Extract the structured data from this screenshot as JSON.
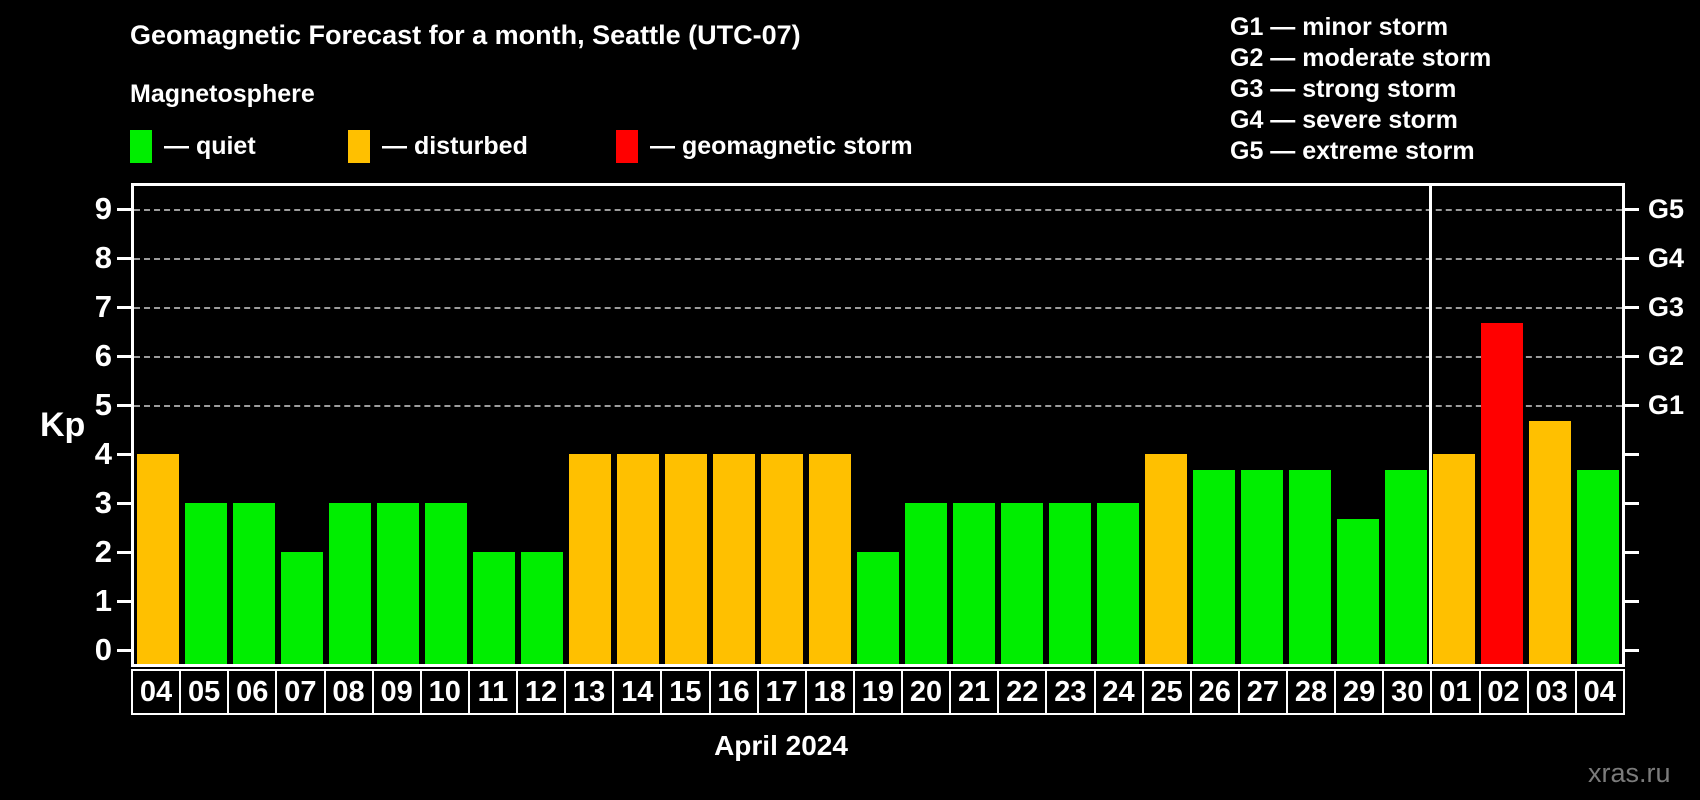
{
  "title": "Geomagnetic Forecast for a month, Seattle (UTC-07)",
  "subtitle": "Magnetosphere",
  "legend": {
    "items": [
      {
        "id": "quiet",
        "label": "— quiet",
        "color": "#00ee00"
      },
      {
        "id": "disturbed",
        "label": "— disturbed",
        "color": "#ffc000"
      },
      {
        "id": "storm",
        "label": "— geomagnetic storm",
        "color": "#ff0000"
      }
    ]
  },
  "g_scale": [
    "G1 — minor storm",
    "G2 — moderate storm",
    "G3 — strong storm",
    "G4 — severe storm",
    "G5 — extreme storm"
  ],
  "y_axis": {
    "label": "Kp",
    "ticks": [
      "0",
      "1",
      "2",
      "3",
      "4",
      "5",
      "6",
      "7",
      "8",
      "9"
    ]
  },
  "right_axis": {
    "labels": [
      "G1",
      "G2",
      "G3",
      "G4",
      "G5"
    ],
    "values": [
      5,
      6,
      7,
      8,
      9
    ]
  },
  "x_axis_title": "April 2024",
  "watermark": "xras.ru",
  "chart_data": {
    "type": "bar",
    "title": "Geomagnetic Forecast for a month, Seattle (UTC-07)",
    "xlabel": "April 2024",
    "ylabel": "Kp",
    "ylim": [
      0,
      9.5
    ],
    "grid": "dashed horizontal lines at Kp 5-9 only",
    "legend_position": "top-left",
    "month_separator_after_index": 26,
    "categories": [
      "04",
      "05",
      "06",
      "07",
      "08",
      "09",
      "10",
      "11",
      "12",
      "13",
      "14",
      "15",
      "16",
      "17",
      "18",
      "19",
      "20",
      "21",
      "22",
      "23",
      "24",
      "25",
      "26",
      "27",
      "28",
      "29",
      "30",
      "01",
      "02",
      "03",
      "04"
    ],
    "values": [
      4,
      3,
      3,
      2,
      3,
      3,
      3,
      2,
      2,
      4,
      4,
      4,
      4,
      4,
      4,
      2,
      3,
      3,
      3,
      3,
      3,
      4,
      3.67,
      3.67,
      3.67,
      2.67,
      3.67,
      4,
      6.67,
      4.67,
      3.67
    ],
    "statuses": [
      "disturbed",
      "quiet",
      "quiet",
      "quiet",
      "quiet",
      "quiet",
      "quiet",
      "quiet",
      "quiet",
      "disturbed",
      "disturbed",
      "disturbed",
      "disturbed",
      "disturbed",
      "disturbed",
      "quiet",
      "quiet",
      "quiet",
      "quiet",
      "quiet",
      "quiet",
      "disturbed",
      "quiet",
      "quiet",
      "quiet",
      "quiet",
      "quiet",
      "disturbed",
      "storm",
      "disturbed",
      "quiet"
    ],
    "status_colors": {
      "quiet": "#00ee00",
      "disturbed": "#ffc000",
      "storm": "#ff0000"
    }
  }
}
